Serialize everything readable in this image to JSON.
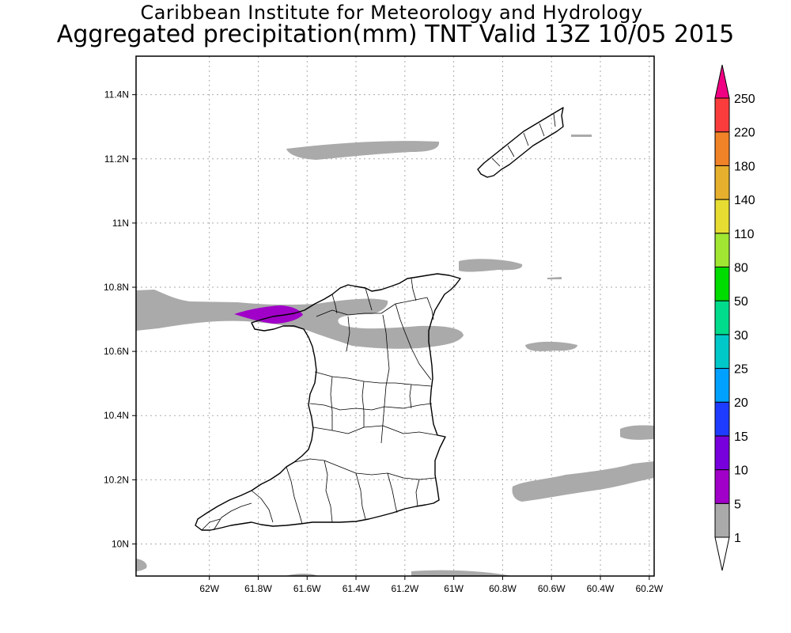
{
  "header": {
    "title_line1": "Caribbean Institute for Meteorology and Hydrology",
    "title_line2": "Aggregated precipitation(mm) TNT Valid 13Z 10/05 2015"
  },
  "map": {
    "lon_range": [
      -62.3,
      -60.18
    ],
    "lat_range": [
      9.9,
      11.52
    ],
    "lon_ticks": [
      {
        "value": -62.0,
        "label": "62W"
      },
      {
        "value": -61.8,
        "label": "61.8W"
      },
      {
        "value": -61.6,
        "label": "61.6W"
      },
      {
        "value": -61.4,
        "label": "61.4W"
      },
      {
        "value": -61.2,
        "label": "61.2W"
      },
      {
        "value": -61.0,
        "label": "61W"
      },
      {
        "value": -60.8,
        "label": "60.8W"
      },
      {
        "value": -60.6,
        "label": "60.6W"
      },
      {
        "value": -60.4,
        "label": "60.4W"
      },
      {
        "value": -60.2,
        "label": "60.2W"
      }
    ],
    "lat_ticks": [
      {
        "value": 10.0,
        "label": "10N"
      },
      {
        "value": 10.2,
        "label": "10.2N"
      },
      {
        "value": 10.4,
        "label": "10.4N"
      },
      {
        "value": 10.6,
        "label": "10.6N"
      },
      {
        "value": 10.8,
        "label": "10.8N"
      },
      {
        "value": 11.0,
        "label": "11N"
      },
      {
        "value": 11.2,
        "label": "11.2N"
      },
      {
        "value": 11.4,
        "label": "11.4N"
      }
    ],
    "grid": true
  },
  "colorbar": {
    "levels": [
      {
        "label": "1",
        "color": "#ffffff"
      },
      {
        "label": "5",
        "color": "#aaaaaa"
      },
      {
        "label": "10",
        "color": "#a000c8"
      },
      {
        "label": "15",
        "color": "#7800dc"
      },
      {
        "label": "20",
        "color": "#1e3cff"
      },
      {
        "label": "25",
        "color": "#00a0ff"
      },
      {
        "label": "30",
        "color": "#00c8c8"
      },
      {
        "label": "50",
        "color": "#00dc8c"
      },
      {
        "label": "80",
        "color": "#00dc00"
      },
      {
        "label": "110",
        "color": "#a0e632"
      },
      {
        "label": "140",
        "color": "#e6dc32"
      },
      {
        "label": "180",
        "color": "#e6af2d"
      },
      {
        "label": "220",
        "color": "#f08228"
      },
      {
        "label": "250",
        "color": "#fa3c3c"
      }
    ],
    "top_arrow_color": "#f00082",
    "bottom_arrow_color": "#ffffff"
  }
}
